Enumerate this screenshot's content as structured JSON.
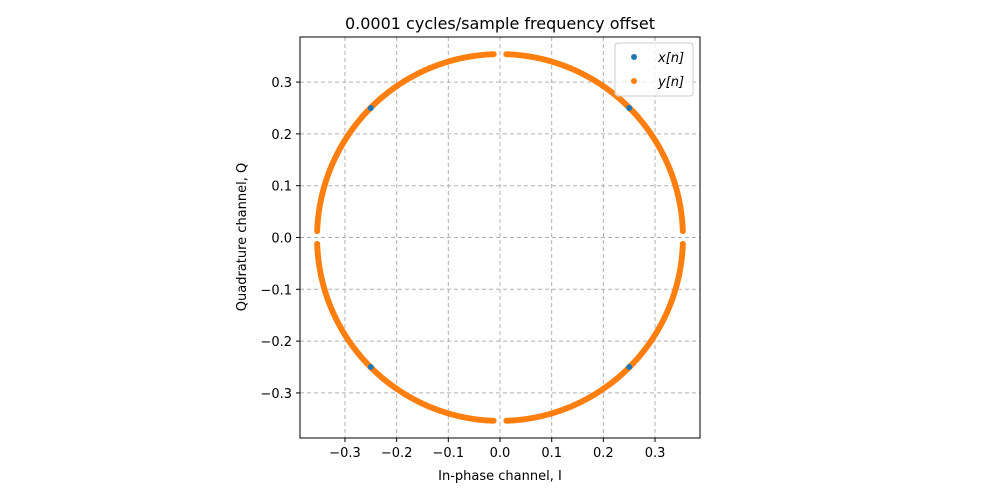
{
  "chart_data": {
    "type": "scatter",
    "title": "0.0001 cycles/sample frequency offset",
    "xlabel": "In-phase channel, I",
    "ylabel": "Quadrature channel, Q",
    "xlim": [
      -0.387,
      0.387
    ],
    "ylim": [
      -0.387,
      0.387
    ],
    "xticks": [
      -0.3,
      -0.2,
      -0.1,
      0.0,
      0.1,
      0.2,
      0.3
    ],
    "xtick_labels": [
      "−0.3",
      "−0.2",
      "−0.1",
      "0.0",
      "0.1",
      "0.2",
      "0.3"
    ],
    "yticks": [
      0.3,
      0.2,
      0.1,
      0.0,
      -0.1,
      -0.2,
      -0.3
    ],
    "ytick_labels": [
      "0.3",
      "0.2",
      "0.1",
      "0.0",
      "−0.1",
      "−0.2",
      "−0.3"
    ],
    "grid": true,
    "legend_position": "top-right",
    "series": [
      {
        "name": "x[n]",
        "color": "#1f77b4",
        "x": [
          0.25,
          -0.25,
          -0.25,
          0.25
        ],
        "y": [
          0.25,
          0.25,
          -0.25,
          -0.25
        ]
      },
      {
        "name": "y[n]",
        "color": "#ff7f0e",
        "description_radius": 0.354,
        "angles_deg_ranges": [
          [
            2,
            88
          ],
          [
            92,
            178
          ],
          [
            182,
            268
          ],
          [
            272,
            358
          ]
        ]
      }
    ]
  }
}
